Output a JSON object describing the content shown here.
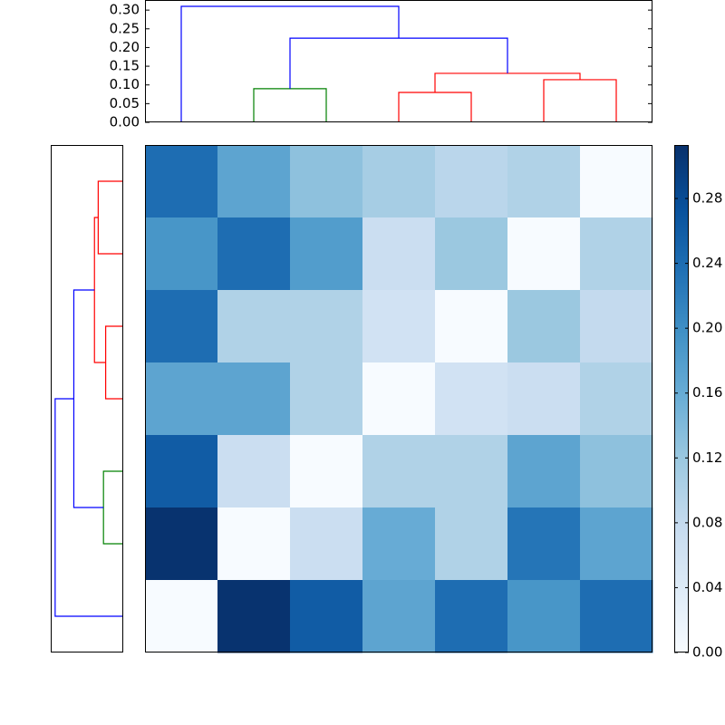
{
  "chart_data": [
    {
      "type": "dendrogram",
      "orientation": "top",
      "xlim": [
        0,
        70
      ],
      "ylim": [
        0,
        0.327
      ],
      "yticks": [
        {
          "value": 0,
          "label": "0.00"
        },
        {
          "value": 0.05,
          "label": "0.05"
        },
        {
          "value": 0.1,
          "label": "0.10"
        },
        {
          "value": 0.15,
          "label": "0.15"
        },
        {
          "value": 0.2,
          "label": "0.20"
        },
        {
          "value": 0.25,
          "label": "0.25"
        },
        {
          "value": 0.3,
          "label": "0.30"
        }
      ],
      "links": [
        {
          "icoord": [
            15,
            15,
            25,
            25
          ],
          "dcoord": [
            0,
            0.09,
            0.09,
            0
          ],
          "color": "#008000"
        },
        {
          "icoord": [
            35,
            35,
            45,
            45
          ],
          "dcoord": [
            0,
            0.08,
            0.08,
            0
          ],
          "color": "#ff0000"
        },
        {
          "icoord": [
            55,
            55,
            65,
            65
          ],
          "dcoord": [
            0,
            0.114,
            0.114,
            0
          ],
          "color": "#ff0000"
        },
        {
          "icoord": [
            40,
            40,
            60,
            60
          ],
          "dcoord": [
            0.08,
            0.131,
            0.131,
            0.114
          ],
          "color": "#ff0000"
        },
        {
          "icoord": [
            20,
            20,
            50,
            50
          ],
          "dcoord": [
            0.09,
            0.225,
            0.225,
            0.131
          ],
          "color": "#0000ff"
        },
        {
          "icoord": [
            5,
            5,
            35,
            35
          ],
          "dcoord": [
            0,
            0.31,
            0.31,
            0.225
          ],
          "color": "#0000ff"
        }
      ]
    },
    {
      "type": "dendrogram",
      "orientation": "left",
      "xlim": [
        0,
        0.33
      ],
      "ylim": [
        0,
        70
      ],
      "links": [
        {
          "icoord": [
            15,
            15,
            25,
            25
          ],
          "dcoord": [
            0,
            0.09,
            0.09,
            0
          ],
          "color": "#008000"
        },
        {
          "icoord": [
            35,
            35,
            45,
            45
          ],
          "dcoord": [
            0,
            0.08,
            0.08,
            0
          ],
          "color": "#ff0000"
        },
        {
          "icoord": [
            55,
            55,
            65,
            65
          ],
          "dcoord": [
            0,
            0.114,
            0.114,
            0
          ],
          "color": "#ff0000"
        },
        {
          "icoord": [
            40,
            40,
            60,
            60
          ],
          "dcoord": [
            0.08,
            0.131,
            0.131,
            0.114
          ],
          "color": "#ff0000"
        },
        {
          "icoord": [
            20,
            20,
            50,
            50
          ],
          "dcoord": [
            0.09,
            0.225,
            0.225,
            0.131
          ],
          "color": "#0000ff"
        },
        {
          "icoord": [
            5,
            5,
            35,
            35
          ],
          "dcoord": [
            0,
            0.31,
            0.31,
            0.225
          ],
          "color": "#0000ff"
        }
      ]
    },
    {
      "type": "heatmap",
      "colormap": "Blues",
      "clim": [
        0,
        0.313
      ],
      "matrix": [
        [
          0.24,
          0.17,
          0.13,
          0.11,
          0.09,
          0.1,
          0.0
        ],
        [
          0.19,
          0.24,
          0.18,
          0.07,
          0.12,
          0.0,
          0.1
        ],
        [
          0.24,
          0.1,
          0.1,
          0.06,
          0.0,
          0.12,
          0.08
        ],
        [
          0.17,
          0.17,
          0.1,
          0.0,
          0.06,
          0.07,
          0.1
        ],
        [
          0.26,
          0.07,
          0.0,
          0.1,
          0.1,
          0.17,
          0.13
        ],
        [
          0.31,
          0.0,
          0.07,
          0.16,
          0.1,
          0.23,
          0.17
        ],
        [
          0.0,
          0.31,
          0.26,
          0.17,
          0.24,
          0.19,
          0.24
        ]
      ],
      "cticks": [
        {
          "value": 0,
          "label": "0.00"
        },
        {
          "value": 0.04,
          "label": "0.04"
        },
        {
          "value": 0.08,
          "label": "0.08"
        },
        {
          "value": 0.12,
          "label": "0.12"
        },
        {
          "value": 0.16,
          "label": "0.16"
        },
        {
          "value": 0.2,
          "label": "0.20"
        },
        {
          "value": 0.24,
          "label": "0.24"
        },
        {
          "value": 0.28,
          "label": "0.28"
        }
      ]
    }
  ]
}
